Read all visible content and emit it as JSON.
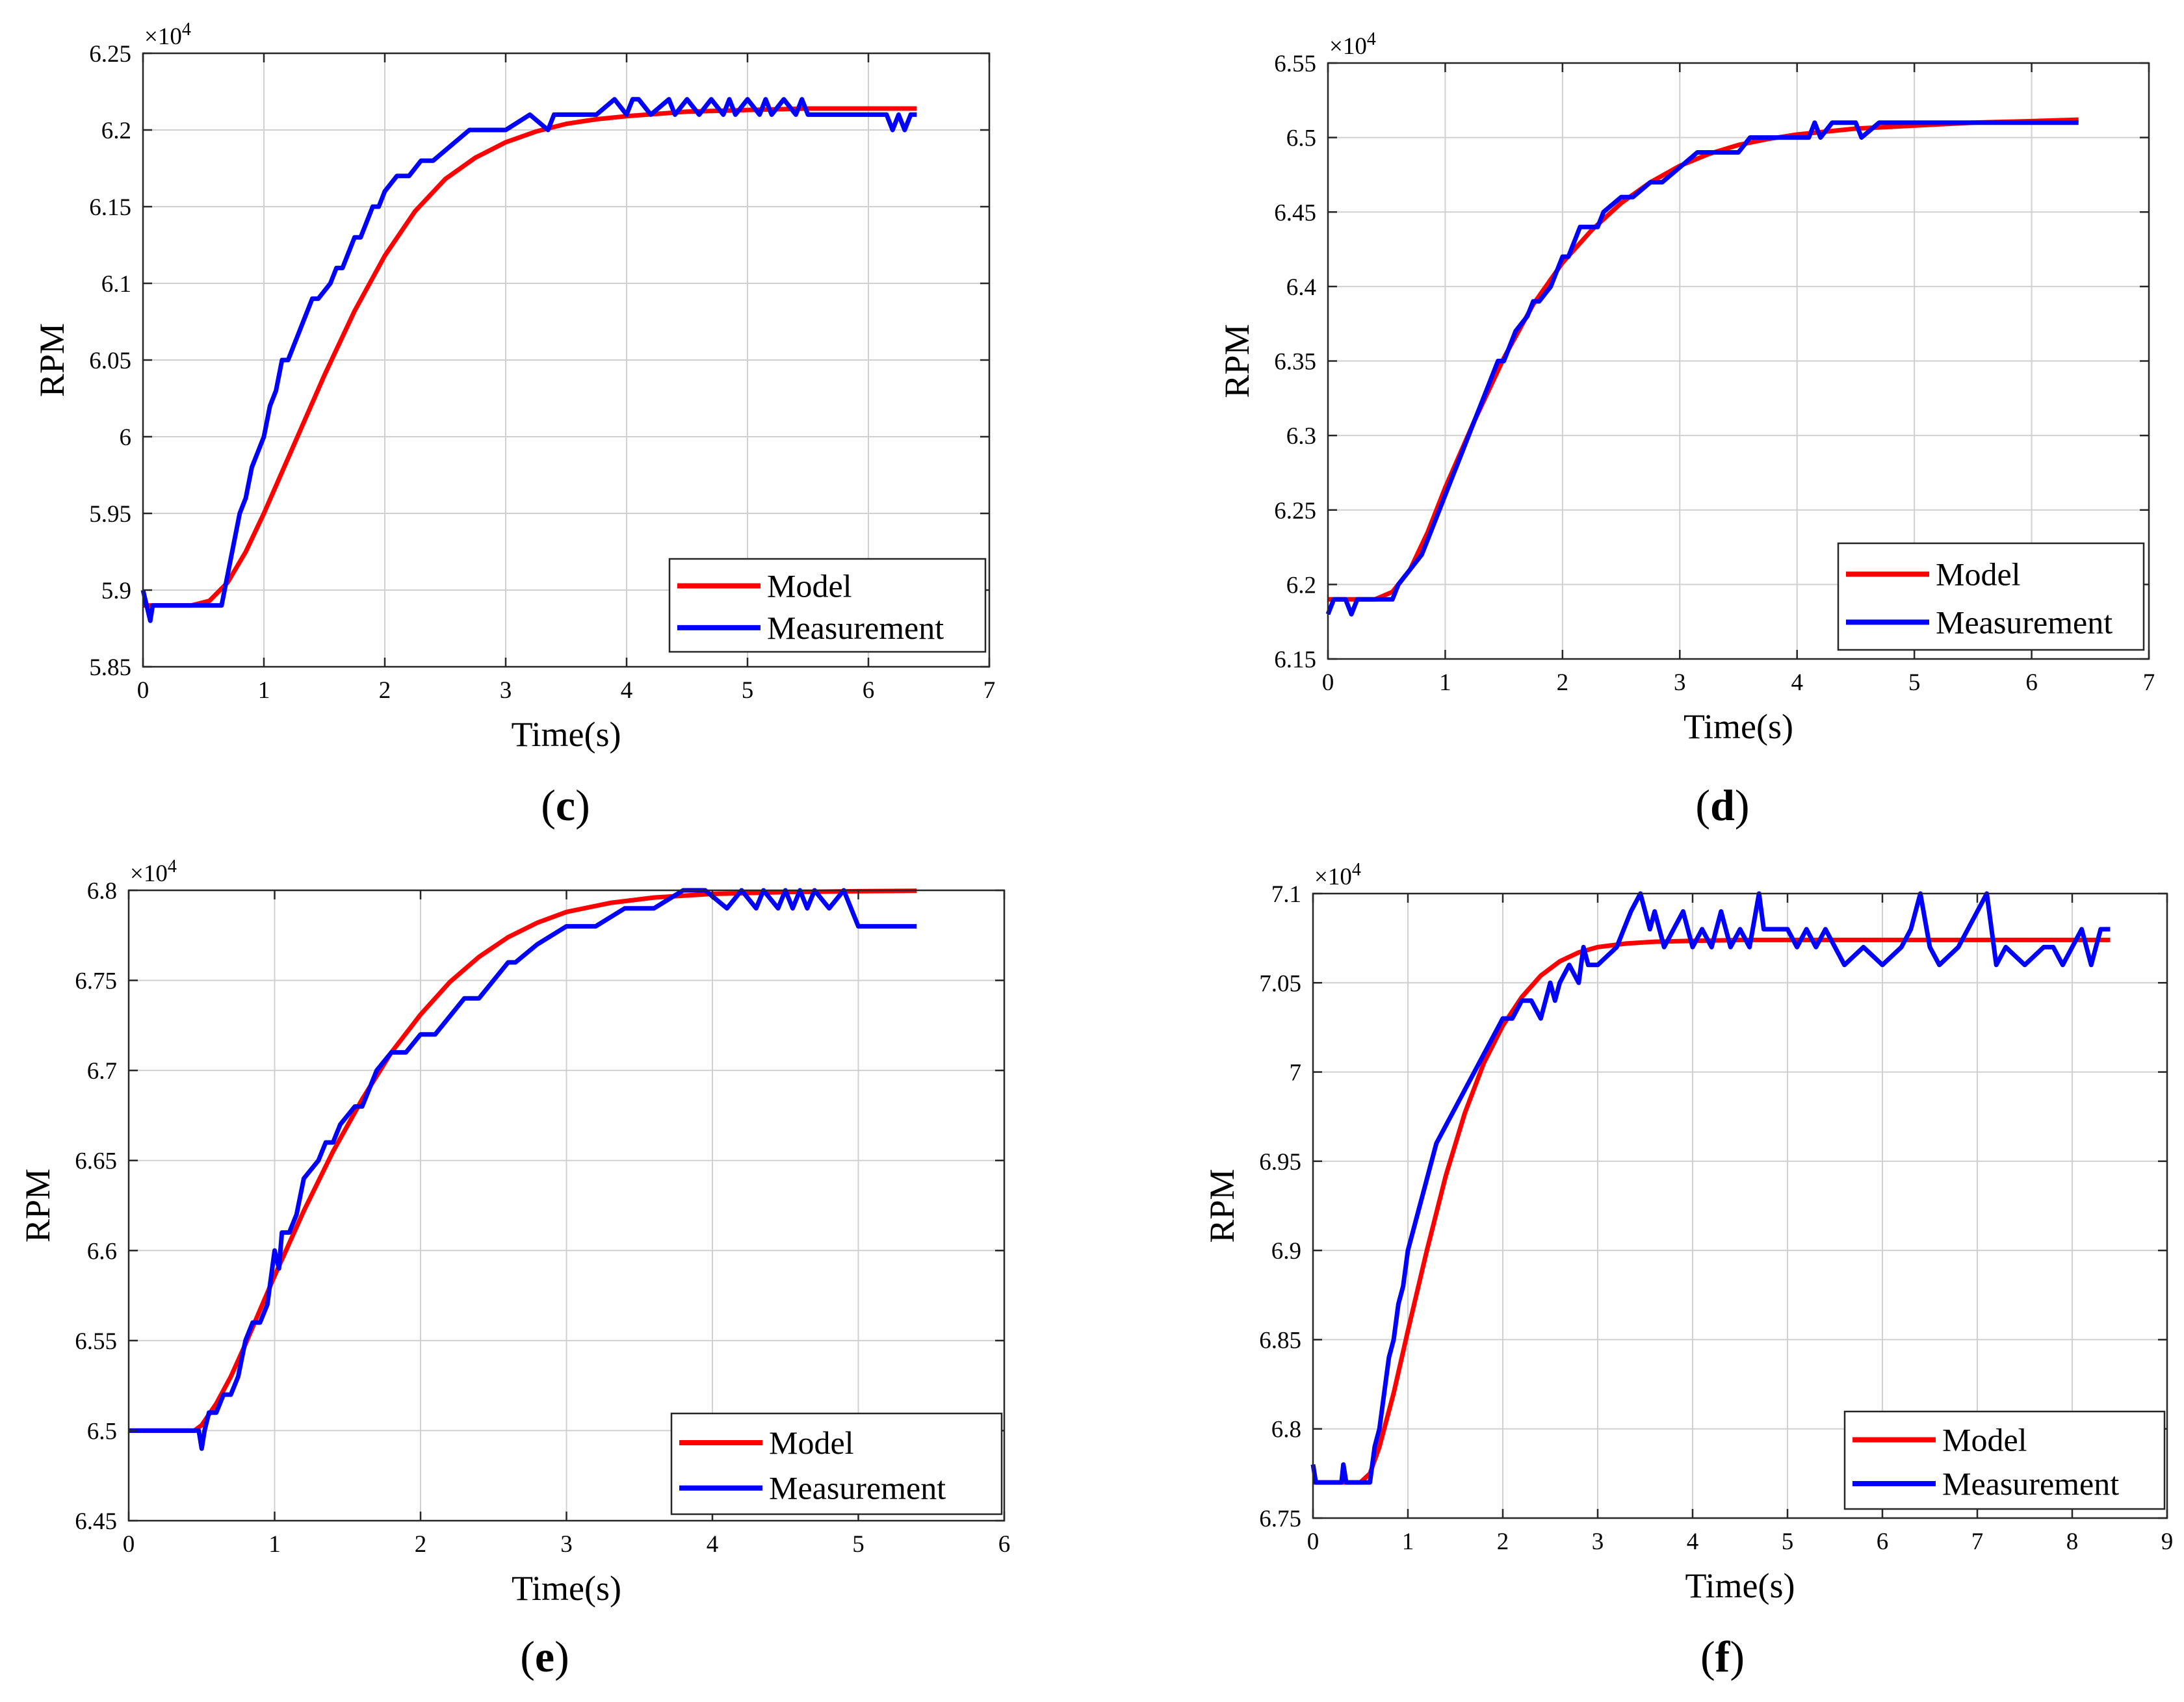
{
  "figure": {
    "colors": {
      "model": "#ff0000",
      "measurement": "#0000ff",
      "grid": "#d0d0d0",
      "axis": "#262626"
    },
    "legend": {
      "model": "Model",
      "measurement": "Measurement",
      "placement": "bottom-right"
    }
  },
  "chart_data": [
    {
      "type": "line",
      "caption": "(c)",
      "caption_letter": "c",
      "xlabel": "Time(s)",
      "ylabel": "RPM",
      "multiplier": "×10",
      "multiplier_exp": "4",
      "xlim": [
        0,
        7
      ],
      "ylim": [
        5.85,
        6.25
      ],
      "xticks": [
        0,
        1,
        2,
        3,
        4,
        5,
        6,
        7
      ],
      "xtick_labels": [
        "0",
        "1",
        "2",
        "3",
        "4",
        "5",
        "6",
        "7"
      ],
      "yticks": [
        5.85,
        5.9,
        5.95,
        6.0,
        6.05,
        6.1,
        6.15,
        6.2,
        6.25
      ],
      "ytick_labels": [
        "5.85",
        "5.9",
        "5.95",
        "6",
        "6.05",
        "6.1",
        "6.15",
        "6.2",
        "6.25"
      ],
      "grid": true,
      "series": [
        {
          "name": "Model",
          "color": "#ff0000",
          "x": [
            0,
            0.4,
            0.55,
            0.7,
            0.85,
            1.0,
            1.25,
            1.5,
            1.75,
            2.0,
            2.25,
            2.5,
            2.75,
            3.0,
            3.25,
            3.5,
            3.75,
            4.0,
            4.5,
            5.0,
            5.5,
            6.0,
            6.4
          ],
          "y": [
            5.89,
            5.89,
            5.893,
            5.905,
            5.925,
            5.95,
            5.995,
            6.04,
            6.082,
            6.118,
            6.147,
            6.168,
            6.182,
            6.192,
            6.199,
            6.204,
            6.207,
            6.209,
            6.212,
            6.213,
            6.214,
            6.214,
            6.214
          ]
        },
        {
          "name": "Measurement",
          "color": "#0000ff",
          "x": [
            0,
            0.03,
            0.06,
            0.08,
            0.1,
            0.65,
            0.7,
            0.75,
            0.8,
            0.85,
            0.9,
            0.95,
            1.0,
            1.05,
            1.1,
            1.15,
            1.2,
            1.25,
            1.3,
            1.35,
            1.4,
            1.45,
            1.55,
            1.6,
            1.65,
            1.7,
            1.75,
            1.8,
            1.85,
            1.9,
            1.95,
            2.0,
            2.1,
            2.2,
            2.3,
            2.4,
            2.55,
            2.7,
            2.85,
            3.0,
            3.2,
            3.35,
            3.4,
            3.45,
            3.5,
            3.6,
            3.75,
            3.9,
            4.0,
            4.05,
            4.1,
            4.2,
            4.35,
            4.4,
            4.5,
            4.6,
            4.7,
            4.8,
            4.85,
            4.9,
            5.0,
            5.1,
            5.15,
            5.2,
            5.3,
            5.4,
            5.45,
            5.5,
            5.6,
            6.15,
            6.2,
            6.25,
            6.3,
            6.35,
            6.4
          ],
          "y": [
            5.9,
            5.89,
            5.88,
            5.89,
            5.89,
            5.89,
            5.91,
            5.93,
            5.95,
            5.96,
            5.98,
            5.99,
            6.0,
            6.02,
            6.03,
            6.05,
            6.05,
            6.06,
            6.07,
            6.08,
            6.09,
            6.09,
            6.1,
            6.11,
            6.11,
            6.12,
            6.13,
            6.13,
            6.14,
            6.15,
            6.15,
            6.16,
            6.17,
            6.17,
            6.18,
            6.18,
            6.19,
            6.2,
            6.2,
            6.2,
            6.21,
            6.2,
            6.21,
            6.21,
            6.21,
            6.21,
            6.21,
            6.22,
            6.21,
            6.22,
            6.22,
            6.21,
            6.22,
            6.21,
            6.22,
            6.21,
            6.22,
            6.21,
            6.22,
            6.21,
            6.22,
            6.21,
            6.22,
            6.21,
            6.22,
            6.21,
            6.22,
            6.21,
            6.21,
            6.21,
            6.2,
            6.21,
            6.2,
            6.21,
            6.21
          ]
        }
      ]
    },
    {
      "type": "line",
      "caption": "(d)",
      "caption_letter": "d",
      "xlabel": "Time(s)",
      "ylabel": "RPM",
      "multiplier": "×10",
      "multiplier_exp": "4",
      "xlim": [
        0,
        7
      ],
      "ylim": [
        6.15,
        6.55
      ],
      "xticks": [
        0,
        1,
        2,
        3,
        4,
        5,
        6,
        7
      ],
      "xtick_labels": [
        "0",
        "1",
        "2",
        "3",
        "4",
        "5",
        "6",
        "7"
      ],
      "yticks": [
        6.15,
        6.2,
        6.25,
        6.3,
        6.35,
        6.4,
        6.45,
        6.5,
        6.55
      ],
      "ytick_labels": [
        "6.15",
        "6.2",
        "6.25",
        "6.3",
        "6.35",
        "6.4",
        "6.45",
        "6.5",
        "6.55"
      ],
      "grid": true,
      "series": [
        {
          "name": "Model",
          "color": "#ff0000",
          "x": [
            0,
            0.4,
            0.55,
            0.7,
            0.85,
            1.0,
            1.25,
            1.5,
            1.75,
            2.0,
            2.25,
            2.5,
            2.75,
            3.0,
            3.25,
            3.5,
            3.75,
            4.0,
            4.5,
            5.0,
            5.5,
            6.0,
            6.4
          ],
          "y": [
            6.19,
            6.19,
            6.195,
            6.21,
            6.235,
            6.265,
            6.31,
            6.352,
            6.388,
            6.416,
            6.438,
            6.456,
            6.47,
            6.481,
            6.489,
            6.495,
            6.499,
            6.502,
            6.506,
            6.508,
            6.51,
            6.511,
            6.512
          ]
        },
        {
          "name": "Measurement",
          "color": "#0000ff",
          "x": [
            0,
            0.05,
            0.1,
            0.15,
            0.2,
            0.25,
            0.55,
            0.6,
            0.7,
            0.8,
            0.85,
            0.9,
            0.95,
            1.0,
            1.05,
            1.1,
            1.15,
            1.2,
            1.25,
            1.3,
            1.35,
            1.4,
            1.45,
            1.5,
            1.55,
            1.6,
            1.7,
            1.75,
            1.8,
            1.9,
            1.95,
            2.0,
            2.05,
            2.1,
            2.15,
            2.3,
            2.35,
            2.5,
            2.6,
            2.75,
            2.85,
            3.0,
            3.15,
            3.3,
            3.5,
            3.6,
            3.7,
            3.9,
            4.1,
            4.15,
            4.2,
            4.3,
            4.5,
            4.55,
            4.7,
            5.0,
            5.5,
            6.0,
            6.4
          ],
          "y": [
            6.18,
            6.19,
            6.19,
            6.19,
            6.18,
            6.19,
            6.19,
            6.2,
            6.21,
            6.22,
            6.23,
            6.24,
            6.25,
            6.26,
            6.27,
            6.28,
            6.29,
            6.3,
            6.31,
            6.32,
            6.33,
            6.34,
            6.35,
            6.35,
            6.36,
            6.37,
            6.38,
            6.39,
            6.39,
            6.4,
            6.41,
            6.42,
            6.42,
            6.43,
            6.44,
            6.44,
            6.45,
            6.46,
            6.46,
            6.47,
            6.47,
            6.48,
            6.49,
            6.49,
            6.49,
            6.5,
            6.5,
            6.5,
            6.5,
            6.51,
            6.5,
            6.51,
            6.51,
            6.5,
            6.51,
            6.51,
            6.51,
            6.51,
            6.51
          ]
        }
      ]
    },
    {
      "type": "line",
      "caption": "(e)",
      "caption_letter": "e",
      "xlabel": "Time(s)",
      "ylabel": "RPM",
      "multiplier": "×10",
      "multiplier_exp": "4",
      "xlim": [
        0,
        6
      ],
      "ylim": [
        6.45,
        6.8
      ],
      "xticks": [
        0,
        1,
        2,
        3,
        4,
        5,
        6
      ],
      "xtick_labels": [
        "0",
        "1",
        "2",
        "3",
        "4",
        "5",
        "6"
      ],
      "yticks": [
        6.45,
        6.5,
        6.55,
        6.6,
        6.65,
        6.7,
        6.75,
        6.8
      ],
      "ytick_labels": [
        "6.45",
        "6.5",
        "6.55",
        "6.6",
        "6.65",
        "6.7",
        "6.75",
        "6.8"
      ],
      "grid": true,
      "series": [
        {
          "name": "Model",
          "color": "#ff0000",
          "x": [
            0,
            0.45,
            0.5,
            0.6,
            0.7,
            0.8,
            0.9,
            1.0,
            1.2,
            1.4,
            1.6,
            1.8,
            2.0,
            2.2,
            2.4,
            2.6,
            2.8,
            3.0,
            3.3,
            3.6,
            4.0,
            4.5,
            5.0,
            5.4
          ],
          "y": [
            6.5,
            6.5,
            6.503,
            6.515,
            6.53,
            6.548,
            6.567,
            6.586,
            6.622,
            6.655,
            6.684,
            6.71,
            6.731,
            6.749,
            6.763,
            6.774,
            6.782,
            6.788,
            6.793,
            6.796,
            6.798,
            6.799,
            6.7995,
            6.7997
          ]
        },
        {
          "name": "Measurement",
          "color": "#0000ff",
          "x": [
            0,
            0.48,
            0.5,
            0.52,
            0.55,
            0.6,
            0.65,
            0.7,
            0.75,
            0.8,
            0.85,
            0.9,
            0.95,
            1.0,
            1.03,
            1.05,
            1.1,
            1.15,
            1.2,
            1.3,
            1.35,
            1.4,
            1.45,
            1.55,
            1.6,
            1.65,
            1.7,
            1.8,
            1.9,
            2.0,
            2.1,
            2.2,
            2.3,
            2.4,
            2.5,
            2.6,
            2.65,
            2.8,
            3.0,
            3.2,
            3.4,
            3.6,
            3.8,
            3.95,
            4.1,
            4.2,
            4.3,
            4.35,
            4.45,
            4.5,
            4.55,
            4.6,
            4.65,
            4.7,
            4.8,
            4.9,
            4.95,
            5.0,
            5.4
          ],
          "y": [
            6.5,
            6.5,
            6.49,
            6.5,
            6.51,
            6.51,
            6.52,
            6.52,
            6.53,
            6.55,
            6.56,
            6.56,
            6.57,
            6.6,
            6.59,
            6.61,
            6.61,
            6.62,
            6.64,
            6.65,
            6.66,
            6.66,
            6.67,
            6.68,
            6.68,
            6.69,
            6.7,
            6.71,
            6.71,
            6.72,
            6.72,
            6.73,
            6.74,
            6.74,
            6.75,
            6.76,
            6.76,
            6.77,
            6.78,
            6.78,
            6.79,
            6.79,
            6.8,
            6.8,
            6.79,
            6.8,
            6.79,
            6.8,
            6.79,
            6.8,
            6.79,
            6.8,
            6.79,
            6.8,
            6.79,
            6.8,
            6.79,
            6.78,
            6.78
          ]
        }
      ]
    },
    {
      "type": "line",
      "caption": "(f)",
      "caption_letter": "f",
      "xlabel": "Time(s)",
      "ylabel": "RPM",
      "multiplier": "×10",
      "multiplier_exp": "4",
      "xlim": [
        0,
        9
      ],
      "ylim": [
        6.75,
        7.1
      ],
      "xticks": [
        0,
        1,
        2,
        3,
        4,
        5,
        6,
        7,
        8,
        9
      ],
      "xtick_labels": [
        "0",
        "1",
        "2",
        "3",
        "4",
        "5",
        "6",
        "7",
        "8",
        "9"
      ],
      "yticks": [
        6.75,
        6.8,
        6.85,
        6.9,
        6.95,
        7.0,
        7.05,
        7.1
      ],
      "ytick_labels": [
        "6.75",
        "6.8",
        "6.85",
        "6.9",
        "6.95",
        "7",
        "7.05",
        "7.1"
      ],
      "grid": true,
      "series": [
        {
          "name": "Model",
          "color": "#ff0000",
          "x": [
            0,
            0.5,
            0.6,
            0.7,
            0.85,
            1.0,
            1.2,
            1.4,
            1.6,
            1.8,
            2.0,
            2.2,
            2.4,
            2.6,
            2.8,
            3.0,
            3.3,
            3.6,
            4.0,
            4.5,
            5.0,
            6.0,
            7.0,
            8.0,
            8.4
          ],
          "y": [
            6.77,
            6.77,
            6.775,
            6.79,
            6.82,
            6.855,
            6.9,
            6.942,
            6.977,
            7.005,
            7.026,
            7.042,
            7.054,
            7.062,
            7.067,
            7.07,
            7.072,
            7.073,
            7.0735,
            7.074,
            7.074,
            7.074,
            7.074,
            7.074,
            7.074
          ]
        },
        {
          "name": "Measurement",
          "color": "#0000ff",
          "x": [
            0,
            0.03,
            0.05,
            0.3,
            0.32,
            0.35,
            0.6,
            0.65,
            0.7,
            0.75,
            0.8,
            0.85,
            0.9,
            0.95,
            1.0,
            1.05,
            1.1,
            1.2,
            1.3,
            1.4,
            1.5,
            1.6,
            1.7,
            1.8,
            1.9,
            2.0,
            2.1,
            2.2,
            2.3,
            2.4,
            2.5,
            2.55,
            2.6,
            2.7,
            2.8,
            2.85,
            2.9,
            2.95,
            3.0,
            3.2,
            3.35,
            3.45,
            3.55,
            3.6,
            3.7,
            3.8,
            3.9,
            4.0,
            4.1,
            4.2,
            4.3,
            4.4,
            4.5,
            4.6,
            4.7,
            4.75,
            5.0,
            5.1,
            5.2,
            5.3,
            5.4,
            5.5,
            5.6,
            5.8,
            6.0,
            6.2,
            6.3,
            6.4,
            6.5,
            6.6,
            6.8,
            7.0,
            7.1,
            7.2,
            7.3,
            7.5,
            7.7,
            7.8,
            7.9,
            8.0,
            8.1,
            8.2,
            8.25,
            8.3,
            8.4
          ],
          "y": [
            6.78,
            6.77,
            6.77,
            6.77,
            6.78,
            6.77,
            6.77,
            6.79,
            6.8,
            6.82,
            6.84,
            6.85,
            6.87,
            6.88,
            6.9,
            6.91,
            6.92,
            6.94,
            6.96,
            6.97,
            6.98,
            6.99,
            7.0,
            7.01,
            7.02,
            7.03,
            7.03,
            7.04,
            7.04,
            7.03,
            7.05,
            7.04,
            7.05,
            7.06,
            7.05,
            7.07,
            7.06,
            7.06,
            7.06,
            7.07,
            7.09,
            7.1,
            7.08,
            7.09,
            7.07,
            7.08,
            7.09,
            7.07,
            7.08,
            7.07,
            7.09,
            7.07,
            7.08,
            7.07,
            7.1,
            7.08,
            7.08,
            7.07,
            7.08,
            7.07,
            7.08,
            7.07,
            7.06,
            7.07,
            7.06,
            7.07,
            7.08,
            7.1,
            7.07,
            7.06,
            7.07,
            7.09,
            7.1,
            7.06,
            7.07,
            7.06,
            7.07,
            7.07,
            7.06,
            7.07,
            7.08,
            7.06,
            7.07,
            7.08,
            7.08
          ]
        }
      ]
    }
  ]
}
